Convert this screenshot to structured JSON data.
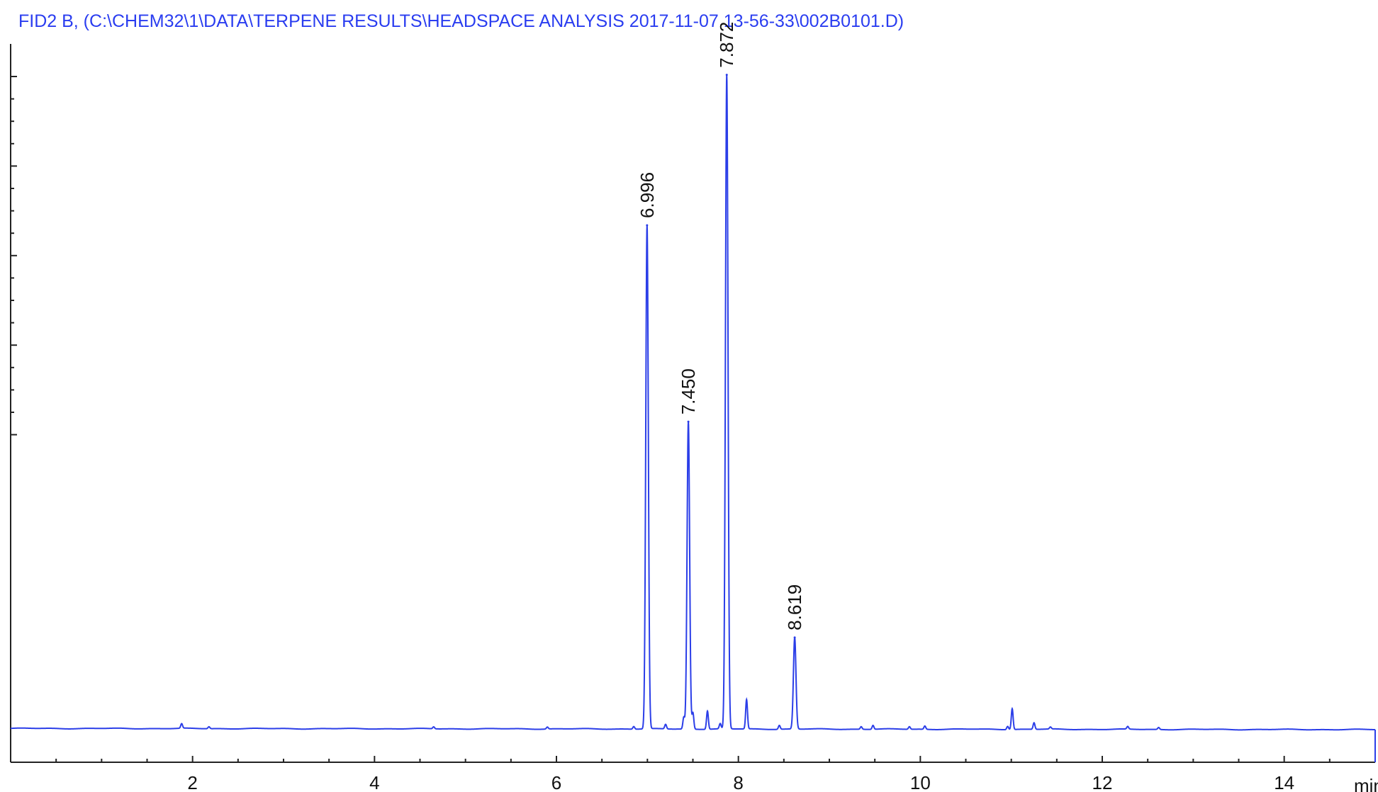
{
  "title": "FID2 B,  (C:\\CHEM32\\1\\DATA\\TERPENE RESULTS\\HEADSPACE ANALYSIS 2017-11-07 13-56-33\\002B0101.D)",
  "colors": {
    "trace": "#2b3ee8",
    "title": "#2a3df0",
    "axis": "#222222"
  },
  "chart_data": {
    "type": "line",
    "title": "FID2 B,  (C:\\CHEM32\\1\\DATA\\TERPENE RESULTS\\HEADSPACE ANALYSIS 2017-11-07 13-56-33\\002B0101.D)",
    "xlabel": "min",
    "ylabel": "",
    "xlim": [
      0,
      15
    ],
    "ylim": [
      0,
      100
    ],
    "grid": false,
    "x_ticks": [
      2,
      4,
      6,
      8,
      10,
      12,
      14
    ],
    "peaks": [
      {
        "rt": 6.996,
        "height": 77,
        "label": "6.996"
      },
      {
        "rt": 7.45,
        "height": 47,
        "label": "7.450"
      },
      {
        "rt": 7.872,
        "height": 100,
        "label": "7.872"
      },
      {
        "rt": 8.619,
        "height": 14,
        "label": "8.619"
      }
    ],
    "minor_peaks": [
      {
        "rt": 1.88,
        "height": 0.7
      },
      {
        "rt": 2.18,
        "height": 0.3
      },
      {
        "rt": 4.65,
        "height": 0.3
      },
      {
        "rt": 5.9,
        "height": 0.3
      },
      {
        "rt": 6.85,
        "height": 0.4
      },
      {
        "rt": 7.2,
        "height": 0.7
      },
      {
        "rt": 7.4,
        "height": 1.8
      },
      {
        "rt": 7.5,
        "height": 2.5
      },
      {
        "rt": 7.66,
        "height": 2.8
      },
      {
        "rt": 7.8,
        "height": 0.8
      },
      {
        "rt": 8.09,
        "height": 4.5
      },
      {
        "rt": 8.45,
        "height": 0.6
      },
      {
        "rt": 9.35,
        "height": 0.4
      },
      {
        "rt": 9.48,
        "height": 0.6
      },
      {
        "rt": 9.88,
        "height": 0.4
      },
      {
        "rt": 10.05,
        "height": 0.5
      },
      {
        "rt": 10.96,
        "height": 0.5
      },
      {
        "rt": 11.01,
        "height": 3.2
      },
      {
        "rt": 11.25,
        "height": 1.0
      },
      {
        "rt": 11.43,
        "height": 0.3
      },
      {
        "rt": 12.28,
        "height": 0.4
      },
      {
        "rt": 12.62,
        "height": 0.3
      }
    ]
  }
}
